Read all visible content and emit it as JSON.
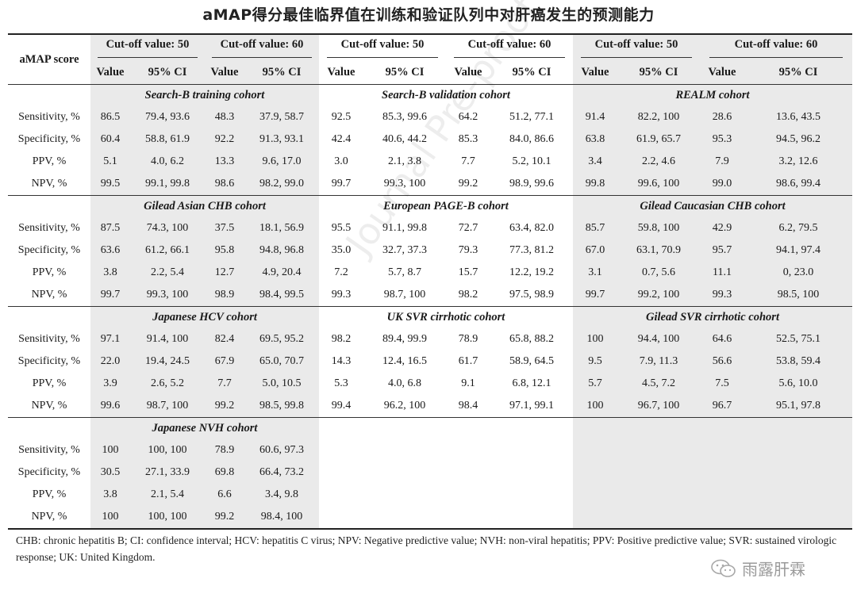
{
  "title": "aMAP得分最佳临界值在训练和验证队列中对肝癌发生的预测能力",
  "header": {
    "score_label": "aMAP score",
    "cutoffs": [
      "Cut-off value: 50",
      "Cut-off value: 60",
      "Cut-off value: 50",
      "Cut-off value: 60",
      "Cut-off value: 50",
      "Cut-off value: 60"
    ],
    "value_label": "Value",
    "ci_label": "95% CI"
  },
  "metrics": [
    "Sensitivity, %",
    "Specificity, %",
    "PPV, %",
    "NPV, %"
  ],
  "blocks": [
    {
      "cohorts": [
        "Search-B training cohort",
        "Search-B validation cohort",
        "REALM cohort"
      ],
      "rows": [
        [
          "86.5",
          "79.4, 93.6",
          "48.3",
          "37.9, 58.7",
          "92.5",
          "85.3, 99.6",
          "64.2",
          "51.2, 77.1",
          "91.4",
          "82.2, 100",
          "28.6",
          "13.6, 43.5"
        ],
        [
          "60.4",
          "58.8, 61.9",
          "92.2",
          "91.3, 93.1",
          "42.4",
          "40.6, 44.2",
          "85.3",
          "84.0, 86.6",
          "63.8",
          "61.9, 65.7",
          "95.3",
          "94.5, 96.2"
        ],
        [
          "5.1",
          "4.0, 6.2",
          "13.3",
          "9.6, 17.0",
          "3.0",
          "2.1, 3.8",
          "7.7",
          "5.2, 10.1",
          "3.4",
          "2.2, 4.6",
          "7.9",
          "3.2, 12.6"
        ],
        [
          "99.5",
          "99.1, 99.8",
          "98.6",
          "98.2, 99.0",
          "99.7",
          "99.3, 100",
          "99.2",
          "98.9, 99.6",
          "99.8",
          "99.6, 100",
          "99.0",
          "98.6, 99.4"
        ]
      ]
    },
    {
      "cohorts": [
        "Gilead Asian CHB cohort",
        "European PAGE-B cohort",
        "Gilead Caucasian CHB cohort"
      ],
      "rows": [
        [
          "87.5",
          "74.3, 100",
          "37.5",
          "18.1, 56.9",
          "95.5",
          "91.1, 99.8",
          "72.7",
          "63.4, 82.0",
          "85.7",
          "59.8, 100",
          "42.9",
          "6.2, 79.5"
        ],
        [
          "63.6",
          "61.2, 66.1",
          "95.8",
          "94.8, 96.8",
          "35.0",
          "32.7, 37.3",
          "79.3",
          "77.3, 81.2",
          "67.0",
          "63.1, 70.9",
          "95.7",
          "94.1, 97.4"
        ],
        [
          "3.8",
          "2.2, 5.4",
          "12.7",
          "4.9, 20.4",
          "7.2",
          "5.7, 8.7",
          "15.7",
          "12.2, 19.2",
          "3.1",
          "0.7, 5.6",
          "11.1",
          "0, 23.0"
        ],
        [
          "99.7",
          "99.3, 100",
          "98.9",
          "98.4, 99.5",
          "99.3",
          "98.7, 100",
          "98.2",
          "97.5, 98.9",
          "99.7",
          "99.2, 100",
          "99.3",
          "98.5, 100"
        ]
      ]
    },
    {
      "cohorts": [
        "Japanese HCV cohort",
        "UK SVR cirrhotic cohort",
        "Gilead SVR cirrhotic cohort"
      ],
      "rows": [
        [
          "97.1",
          "91.4, 100",
          "82.4",
          "69.5, 95.2",
          "98.2",
          "89.4, 99.9",
          "78.9",
          "65.8, 88.2",
          "100",
          "94.4, 100",
          "64.6",
          "52.5, 75.1"
        ],
        [
          "22.0",
          "19.4, 24.5",
          "67.9",
          "65.0, 70.7",
          "14.3",
          "12.4, 16.5",
          "61.7",
          "58.9, 64.5",
          "9.5",
          "7.9, 11.3",
          "56.6",
          "53.8, 59.4"
        ],
        [
          "3.9",
          "2.6, 5.2",
          "7.7",
          "5.0, 10.5",
          "5.3",
          "4.0, 6.8",
          "9.1",
          "6.8, 12.1",
          "5.7",
          "4.5, 7.2",
          "7.5",
          "5.6, 10.0"
        ],
        [
          "99.6",
          "98.7, 100",
          "99.2",
          "98.5, 99.8",
          "99.4",
          "96.2, 100",
          "98.4",
          "97.1, 99.1",
          "100",
          "96.7, 100",
          "96.7",
          "95.1, 97.8"
        ]
      ]
    },
    {
      "cohorts": [
        "Japanese NVH cohort",
        "",
        ""
      ],
      "rows": [
        [
          "100",
          "100, 100",
          "78.9",
          "60.6, 97.3",
          "",
          "",
          "",
          "",
          "",
          "",
          "",
          ""
        ],
        [
          "30.5",
          "27.1, 33.9",
          "69.8",
          "66.4, 73.2",
          "",
          "",
          "",
          "",
          "",
          "",
          "",
          ""
        ],
        [
          "3.8",
          "2.1, 5.4",
          "6.6",
          "3.4, 9.8",
          "",
          "",
          "",
          "",
          "",
          "",
          "",
          ""
        ],
        [
          "100",
          "100, 100",
          "99.2",
          "98.4, 100",
          "",
          "",
          "",
          "",
          "",
          "",
          "",
          ""
        ]
      ]
    }
  ],
  "footnote": "CHB: chronic hepatitis B; CI: confidence interval; HCV: hepatitis C virus; NPV: Negative predictive value; NVH: non-viral hepatitis; PPV: Positive predictive value; SVR: sustained virologic response; UK: United Kingdom.",
  "watermark": "Journal Pre-proof",
  "brand": "雨露肝霖"
}
